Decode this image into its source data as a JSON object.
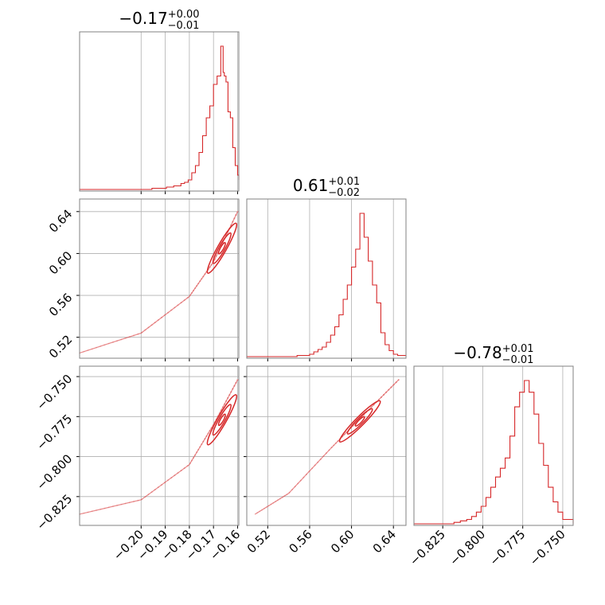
{
  "colors": {
    "line": "#d62728",
    "grid": "#b0b0b0",
    "frame": "#808080",
    "scatter": "#e8a3a3"
  },
  "titles": {
    "p0": {
      "main": "−0.17",
      "sup": "+0.00",
      "sub": "−0.01"
    },
    "p1": {
      "main": "0.61",
      "sup": "+0.01",
      "sub": "−0.02"
    },
    "p2": {
      "main": "−0.78",
      "sup": "+0.01",
      "sub": "−0.01"
    }
  },
  "chart_data": {
    "type": "corner",
    "grid": true,
    "params": [
      {
        "range": [
          -0.2255,
          -0.1595
        ],
        "ticks": [
          -0.2,
          -0.19,
          -0.18,
          -0.17,
          -0.16
        ],
        "tick_labels": [
          "−0.20",
          "−0.19",
          "−0.18",
          "−0.17",
          "−0.16"
        ]
      },
      {
        "range": [
          0.5,
          0.652
        ],
        "ticks": [
          0.52,
          0.56,
          0.6,
          0.64
        ],
        "tick_labels": [
          "0.52",
          "0.56",
          "0.60",
          "0.64"
        ]
      },
      {
        "range": [
          -0.843,
          -0.7435
        ],
        "ticks": [
          -0.825,
          -0.8,
          -0.775,
          -0.75
        ],
        "tick_labels": [
          "−0.825",
          "−0.800",
          "−0.775",
          "−0.750"
        ]
      }
    ],
    "histograms": [
      {
        "param": 0,
        "type": "step",
        "x": [
          -0.2255,
          -0.2225,
          -0.2195,
          -0.2165,
          -0.2135,
          -0.2105,
          -0.2075,
          -0.2045,
          -0.2015,
          -0.1985,
          -0.1955,
          -0.1925,
          -0.1895,
          -0.1865,
          -0.1835,
          -0.182,
          -0.1805,
          -0.179,
          -0.1775,
          -0.176,
          -0.1745,
          -0.173,
          -0.1715,
          -0.17,
          -0.1685,
          -0.167,
          -0.166,
          -0.1655,
          -0.1648,
          -0.164,
          -0.163,
          -0.162,
          -0.161,
          -0.16,
          -0.1595
        ],
        "y": [
          0,
          0,
          0,
          0,
          0,
          0,
          0,
          0,
          0,
          0,
          1,
          1,
          2,
          3,
          5,
          6,
          8,
          14,
          20,
          31,
          45,
          60,
          70,
          88,
          95,
          120,
          98,
          95,
          90,
          65,
          60,
          35,
          20,
          12,
          8
        ]
      },
      {
        "param": 1,
        "type": "step",
        "x": [
          0.5,
          0.51,
          0.52,
          0.53,
          0.54,
          0.548,
          0.554,
          0.56,
          0.564,
          0.568,
          0.572,
          0.576,
          0.58,
          0.584,
          0.588,
          0.592,
          0.596,
          0.6,
          0.604,
          0.608,
          0.612,
          0.616,
          0.62,
          0.624,
          0.628,
          0.632,
          0.636,
          0.64,
          0.644,
          0.652
        ],
        "y": [
          0,
          0,
          0,
          0,
          0,
          1,
          1,
          2,
          4,
          6,
          8,
          12,
          18,
          25,
          35,
          48,
          60,
          75,
          90,
          120,
          100,
          80,
          60,
          45,
          20,
          10,
          5,
          2,
          1,
          0
        ]
      },
      {
        "param": 2,
        "type": "step",
        "x": [
          -0.843,
          -0.838,
          -0.833,
          -0.828,
          -0.823,
          -0.818,
          -0.814,
          -0.81,
          -0.807,
          -0.804,
          -0.801,
          -0.798,
          -0.795,
          -0.792,
          -0.789,
          -0.786,
          -0.783,
          -0.78,
          -0.777,
          -0.774,
          -0.771,
          -0.768,
          -0.765,
          -0.762,
          -0.759,
          -0.756,
          -0.753,
          -0.75,
          -0.7435
        ],
        "y": [
          0,
          0,
          0,
          0,
          0,
          1,
          2,
          3,
          5,
          8,
          12,
          18,
          25,
          32,
          38,
          45,
          60,
          80,
          90,
          98,
          90,
          75,
          55,
          40,
          25,
          15,
          8,
          3,
          0
        ]
      }
    ],
    "contours": [
      {
        "x": 0,
        "y": 1,
        "ridge": [
          [
            -0.2255,
            0.505
          ],
          [
            -0.2,
            0.524
          ],
          [
            -0.18,
            0.559
          ],
          [
            -0.17,
            0.592
          ],
          [
            -0.16,
            0.64
          ]
        ],
        "center": [
          -0.1665,
          0.605
        ],
        "levels": [
          0.9,
          0.6,
          0.3
        ]
      },
      {
        "x": 0,
        "y": 2,
        "ridge": [
          [
            -0.2255,
            -0.836
          ],
          [
            -0.2,
            -0.827
          ],
          [
            -0.18,
            -0.805
          ],
          [
            -0.17,
            -0.78
          ],
          [
            -0.16,
            -0.752
          ]
        ],
        "center": [
          -0.1665,
          -0.777
        ],
        "levels": [
          0.9,
          0.6,
          0.3
        ]
      },
      {
        "x": 1,
        "y": 2,
        "ridge": [
          [
            0.508,
            -0.836
          ],
          [
            0.54,
            -0.823
          ],
          [
            0.58,
            -0.795
          ],
          [
            0.61,
            -0.775
          ],
          [
            0.645,
            -0.752
          ]
        ],
        "center": [
          0.608,
          -0.778
        ],
        "levels": [
          0.9,
          0.6,
          0.3
        ]
      }
    ]
  }
}
